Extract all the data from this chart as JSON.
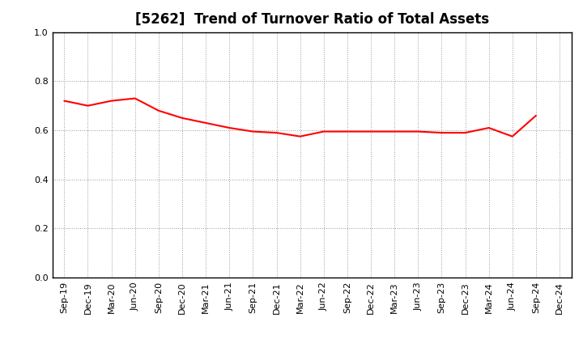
{
  "title": "[5262]  Trend of Turnover Ratio of Total Assets",
  "x_labels": [
    "Sep-19",
    "Dec-19",
    "Mar-20",
    "Jun-20",
    "Sep-20",
    "Dec-20",
    "Mar-21",
    "Jun-21",
    "Sep-21",
    "Dec-21",
    "Mar-22",
    "Jun-22",
    "Sep-22",
    "Dec-22",
    "Mar-23",
    "Jun-23",
    "Sep-23",
    "Dec-23",
    "Mar-24",
    "Jun-24",
    "Sep-24",
    "Dec-24"
  ],
  "values": [
    0.72,
    0.7,
    0.72,
    0.73,
    0.68,
    0.65,
    0.63,
    0.61,
    0.595,
    0.59,
    0.575,
    0.595,
    0.595,
    0.595,
    0.595,
    0.595,
    0.59,
    0.59,
    0.61,
    0.575,
    0.66,
    null
  ],
  "line_color": "#FF0000",
  "line_width": 1.5,
  "ylim": [
    0.0,
    1.0
  ],
  "yticks": [
    0.0,
    0.2,
    0.4,
    0.6,
    0.8,
    1.0
  ],
  "background_color": "#ffffff",
  "plot_bg_color": "#ffffff",
  "grid_color": "#999999",
  "title_fontsize": 12,
  "tick_fontsize": 8
}
